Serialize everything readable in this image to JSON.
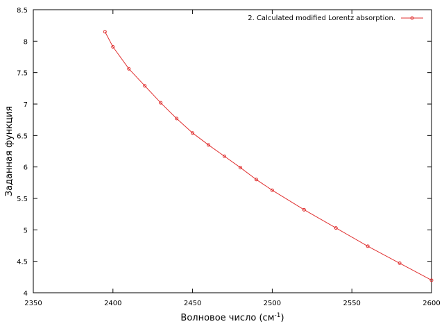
{
  "chart_data": {
    "type": "line",
    "title": "",
    "xlabel": "Волновое число (см",
    "xlabel_sup": "-1",
    "xlabel_suffix": ")",
    "ylabel": "Заданная функция",
    "xlim": [
      2350,
      2600
    ],
    "ylim": [
      4,
      8.5
    ],
    "xticks": [
      "2350",
      "2400",
      "2450",
      "2500",
      "2550",
      "2600"
    ],
    "yticks": [
      "4",
      "4.5",
      "5",
      "5.5",
      "6",
      "6.5",
      "7",
      "7.5",
      "8",
      "8.5"
    ],
    "grid": false,
    "legend_position": "top-right",
    "series": [
      {
        "name": "2. Calculated modified Lorentz absorption.",
        "color": "#e03030",
        "marker": "circle",
        "x": [
          2395,
          2400,
          2410,
          2420,
          2430,
          2440,
          2450,
          2460,
          2470,
          2480,
          2490,
          2500,
          2520,
          2540,
          2560,
          2580,
          2600
        ],
        "y": [
          8.15,
          7.91,
          7.56,
          7.29,
          7.02,
          6.77,
          6.54,
          6.35,
          6.17,
          5.99,
          5.8,
          5.63,
          5.32,
          5.03,
          4.74,
          4.47,
          4.2
        ]
      }
    ]
  }
}
